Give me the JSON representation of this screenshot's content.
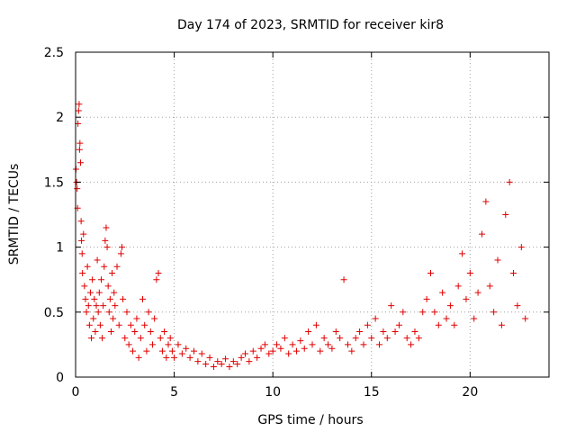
{
  "chart_data": {
    "type": "scatter",
    "title": "Day 174 of 2023, SRMTID for receiver kir8",
    "xlabel": "GPS time / hours",
    "ylabel": "SRMTID / TECUs",
    "xlim": [
      0,
      24
    ],
    "ylim": [
      0,
      2.5
    ],
    "xticks": [
      0,
      5,
      10,
      15,
      20
    ],
    "xtick_labels": [
      "0",
      "5",
      "10",
      "15",
      "20"
    ],
    "yticks": [
      0,
      0.5,
      1,
      1.5,
      2,
      2.5
    ],
    "ytick_labels": [
      "0",
      "0.5",
      "1",
      "1.5",
      "2",
      "2.5"
    ],
    "grid": true,
    "marker": "+",
    "color": "#e00000",
    "series": [
      {
        "name": "SRMTID",
        "points": [
          [
            0.02,
            1.6
          ],
          [
            0.05,
            1.5
          ],
          [
            0.08,
            1.45
          ],
          [
            0.1,
            1.3
          ],
          [
            0.12,
            1.95
          ],
          [
            0.15,
            2.05
          ],
          [
            0.18,
            2.1
          ],
          [
            0.2,
            1.75
          ],
          [
            0.22,
            1.8
          ],
          [
            0.25,
            1.65
          ],
          [
            0.28,
            1.2
          ],
          [
            0.3,
            1.05
          ],
          [
            0.33,
            0.95
          ],
          [
            0.35,
            0.8
          ],
          [
            0.4,
            1.1
          ],
          [
            0.45,
            0.7
          ],
          [
            0.5,
            0.6
          ],
          [
            0.55,
            0.5
          ],
          [
            0.6,
            0.85
          ],
          [
            0.65,
            0.55
          ],
          [
            0.7,
            0.4
          ],
          [
            0.75,
            0.65
          ],
          [
            0.8,
            0.3
          ],
          [
            0.85,
            0.75
          ],
          [
            0.9,
            0.45
          ],
          [
            0.95,
            0.6
          ],
          [
            1.0,
            0.35
          ],
          [
            1.05,
            0.55
          ],
          [
            1.1,
            0.9
          ],
          [
            1.15,
            0.5
          ],
          [
            1.2,
            0.65
          ],
          [
            1.25,
            0.4
          ],
          [
            1.3,
            0.75
          ],
          [
            1.35,
            0.3
          ],
          [
            1.4,
            0.55
          ],
          [
            1.45,
            0.85
          ],
          [
            1.5,
            1.05
          ],
          [
            1.55,
            1.15
          ],
          [
            1.6,
            1.0
          ],
          [
            1.65,
            0.7
          ],
          [
            1.7,
            0.5
          ],
          [
            1.75,
            0.6
          ],
          [
            1.8,
            0.35
          ],
          [
            1.85,
            0.8
          ],
          [
            1.9,
            0.45
          ],
          [
            1.95,
            0.65
          ],
          [
            2.0,
            0.55
          ],
          [
            2.1,
            0.85
          ],
          [
            2.2,
            0.4
          ],
          [
            2.3,
            0.95
          ],
          [
            2.35,
            1.0
          ],
          [
            2.4,
            0.6
          ],
          [
            2.5,
            0.3
          ],
          [
            2.6,
            0.5
          ],
          [
            2.7,
            0.25
          ],
          [
            2.8,
            0.4
          ],
          [
            2.9,
            0.2
          ],
          [
            3.0,
            0.35
          ],
          [
            3.1,
            0.45
          ],
          [
            3.2,
            0.15
          ],
          [
            3.3,
            0.3
          ],
          [
            3.4,
            0.6
          ],
          [
            3.5,
            0.4
          ],
          [
            3.6,
            0.2
          ],
          [
            3.7,
            0.5
          ],
          [
            3.8,
            0.35
          ],
          [
            3.9,
            0.25
          ],
          [
            4.0,
            0.45
          ],
          [
            4.1,
            0.75
          ],
          [
            4.2,
            0.8
          ],
          [
            4.3,
            0.3
          ],
          [
            4.4,
            0.2
          ],
          [
            4.5,
            0.35
          ],
          [
            4.6,
            0.15
          ],
          [
            4.7,
            0.25
          ],
          [
            4.8,
            0.3
          ],
          [
            4.9,
            0.2
          ],
          [
            5.0,
            0.15
          ],
          [
            5.2,
            0.25
          ],
          [
            5.4,
            0.18
          ],
          [
            5.6,
            0.22
          ],
          [
            5.8,
            0.15
          ],
          [
            6.0,
            0.2
          ],
          [
            6.2,
            0.12
          ],
          [
            6.4,
            0.18
          ],
          [
            6.6,
            0.1
          ],
          [
            6.8,
            0.15
          ],
          [
            7.0,
            0.08
          ],
          [
            7.2,
            0.12
          ],
          [
            7.4,
            0.1
          ],
          [
            7.6,
            0.14
          ],
          [
            7.8,
            0.08
          ],
          [
            8.0,
            0.12
          ],
          [
            8.2,
            0.1
          ],
          [
            8.4,
            0.15
          ],
          [
            8.6,
            0.18
          ],
          [
            8.8,
            0.12
          ],
          [
            9.0,
            0.2
          ],
          [
            9.2,
            0.15
          ],
          [
            9.4,
            0.22
          ],
          [
            9.6,
            0.25
          ],
          [
            9.8,
            0.18
          ],
          [
            10.0,
            0.2
          ],
          [
            10.2,
            0.25
          ],
          [
            10.4,
            0.22
          ],
          [
            10.6,
            0.3
          ],
          [
            10.8,
            0.18
          ],
          [
            11.0,
            0.25
          ],
          [
            11.2,
            0.2
          ],
          [
            11.4,
            0.28
          ],
          [
            11.6,
            0.22
          ],
          [
            11.8,
            0.35
          ],
          [
            12.0,
            0.25
          ],
          [
            12.2,
            0.4
          ],
          [
            12.4,
            0.2
          ],
          [
            12.6,
            0.3
          ],
          [
            12.8,
            0.25
          ],
          [
            13.0,
            0.22
          ],
          [
            13.2,
            0.35
          ],
          [
            13.4,
            0.3
          ],
          [
            13.6,
            0.75
          ],
          [
            13.8,
            0.25
          ],
          [
            14.0,
            0.2
          ],
          [
            14.2,
            0.3
          ],
          [
            14.4,
            0.35
          ],
          [
            14.6,
            0.25
          ],
          [
            14.8,
            0.4
          ],
          [
            15.0,
            0.3
          ],
          [
            15.2,
            0.45
          ],
          [
            15.4,
            0.25
          ],
          [
            15.6,
            0.35
          ],
          [
            15.8,
            0.3
          ],
          [
            16.0,
            0.55
          ],
          [
            16.2,
            0.35
          ],
          [
            16.4,
            0.4
          ],
          [
            16.6,
            0.5
          ],
          [
            16.8,
            0.3
          ],
          [
            17.0,
            0.25
          ],
          [
            17.2,
            0.35
          ],
          [
            17.4,
            0.3
          ],
          [
            17.6,
            0.5
          ],
          [
            17.8,
            0.6
          ],
          [
            18.0,
            0.8
          ],
          [
            18.2,
            0.5
          ],
          [
            18.4,
            0.4
          ],
          [
            18.6,
            0.65
          ],
          [
            18.8,
            0.45
          ],
          [
            19.0,
            0.55
          ],
          [
            19.2,
            0.4
          ],
          [
            19.4,
            0.7
          ],
          [
            19.6,
            0.95
          ],
          [
            19.8,
            0.6
          ],
          [
            20.0,
            0.8
          ],
          [
            20.2,
            0.45
          ],
          [
            20.4,
            0.65
          ],
          [
            20.6,
            1.1
          ],
          [
            20.8,
            1.35
          ],
          [
            21.0,
            0.7
          ],
          [
            21.2,
            0.5
          ],
          [
            21.4,
            0.9
          ],
          [
            21.6,
            0.4
          ],
          [
            21.8,
            1.25
          ],
          [
            22.0,
            1.5
          ],
          [
            22.2,
            0.8
          ],
          [
            22.4,
            0.55
          ],
          [
            22.6,
            1.0
          ],
          [
            22.8,
            0.45
          ]
        ]
      }
    ]
  }
}
